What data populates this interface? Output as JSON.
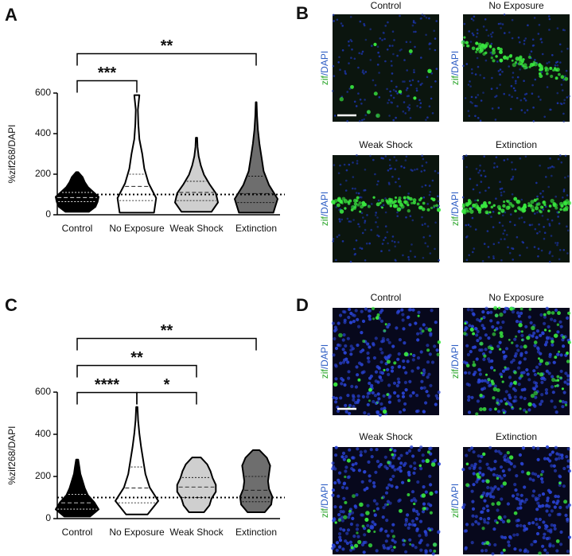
{
  "chart_data": [
    {
      "type": "violin",
      "panel": "A",
      "ylabel": "%zif268/DAPI",
      "categories": [
        "Control",
        "No Exposure",
        "Weak Shock",
        "Extinction"
      ],
      "ylim": [
        0,
        600
      ],
      "yticks": [
        0,
        200,
        400,
        600
      ],
      "hline": 100,
      "violins": [
        {
          "color": "#000000",
          "min": 15,
          "q1": 65,
          "median": 85,
          "q3": 110,
          "max": 210,
          "density": [
            0.55,
            0.85,
            0.95,
            1.0,
            0.75,
            0.5,
            0.35,
            0.25,
            0.05
          ]
        },
        {
          "color": "#ffffff",
          "min": 10,
          "q1": 70,
          "median": 140,
          "q3": 200,
          "max": 590,
          "density": [
            0.8,
            0.9,
            0.55,
            0.35,
            0.25,
            0.12,
            0.07,
            0.05,
            0.12
          ]
        },
        {
          "color": "#cfcfcf",
          "min": 15,
          "q1": 70,
          "median": 110,
          "q3": 165,
          "max": 380,
          "density": [
            0.7,
            1.0,
            0.9,
            0.6,
            0.35,
            0.2,
            0.1,
            0.05,
            0.03
          ]
        },
        {
          "color": "#6e6e6e",
          "min": 10,
          "q1": 60,
          "median": 105,
          "q3": 190,
          "max": 555,
          "density": [
            0.8,
            1.0,
            0.6,
            0.35,
            0.25,
            0.15,
            0.08,
            0.04,
            0.02
          ]
        }
      ],
      "annotations": [
        {
          "text": "***",
          "from": "Control",
          "to": "No Exposure"
        },
        {
          "text": "**",
          "from": "Control",
          "to": "Extinction"
        }
      ]
    },
    {
      "type": "violin",
      "panel": "C",
      "ylabel": "%zif268/DAPI",
      "categories": [
        "Control",
        "No Exposure",
        "Weak Shock",
        "Extinction"
      ],
      "ylim": [
        0,
        600
      ],
      "yticks": [
        0,
        200,
        400,
        600
      ],
      "hline": 100,
      "violins": [
        {
          "color": "#000000",
          "min": 10,
          "q1": 45,
          "median": 75,
          "q3": 115,
          "max": 280,
          "density": [
            0.6,
            1.0,
            0.8,
            0.5,
            0.35,
            0.25,
            0.15,
            0.1,
            0.05
          ]
        },
        {
          "color": "#ffffff",
          "min": 20,
          "q1": 75,
          "median": 145,
          "q3": 245,
          "max": 530,
          "density": [
            0.5,
            1.0,
            0.6,
            0.4,
            0.3,
            0.2,
            0.12,
            0.06,
            0.03
          ]
        },
        {
          "color": "#cfcfcf",
          "min": 30,
          "q1": 100,
          "median": 150,
          "q3": 195,
          "max": 290,
          "density": [
            0.35,
            0.6,
            0.7,
            0.9,
            0.9,
            0.75,
            0.65,
            0.5,
            0.2
          ]
        },
        {
          "color": "#6e6e6e",
          "min": 30,
          "q1": 80,
          "median": 135,
          "q3": 200,
          "max": 325,
          "density": [
            0.4,
            0.7,
            0.75,
            0.6,
            0.55,
            0.6,
            0.65,
            0.5,
            0.15
          ]
        }
      ],
      "annotations": [
        {
          "text": "****",
          "from": "Control",
          "to": "No Exposure"
        },
        {
          "text": "*",
          "from": "No Exposure",
          "to": "Weak Shock"
        },
        {
          "text": "**",
          "from": "Control",
          "to": "Weak Shock"
        },
        {
          "text": "**",
          "from": "Control",
          "to": "Extinction"
        }
      ]
    }
  ],
  "stain_green": "zif",
  "stain_blue": "/DAPI",
  "image_panels": [
    {
      "letter": "B",
      "images": [
        {
          "title": "Control"
        },
        {
          "title": "No Exposure"
        },
        {
          "title": "Weak Shock"
        },
        {
          "title": "Extinction"
        }
      ]
    },
    {
      "letter": "D",
      "images": [
        {
          "title": "Control"
        },
        {
          "title": "No Exposure"
        },
        {
          "title": "Weak Shock"
        },
        {
          "title": "Extinction"
        }
      ]
    }
  ]
}
